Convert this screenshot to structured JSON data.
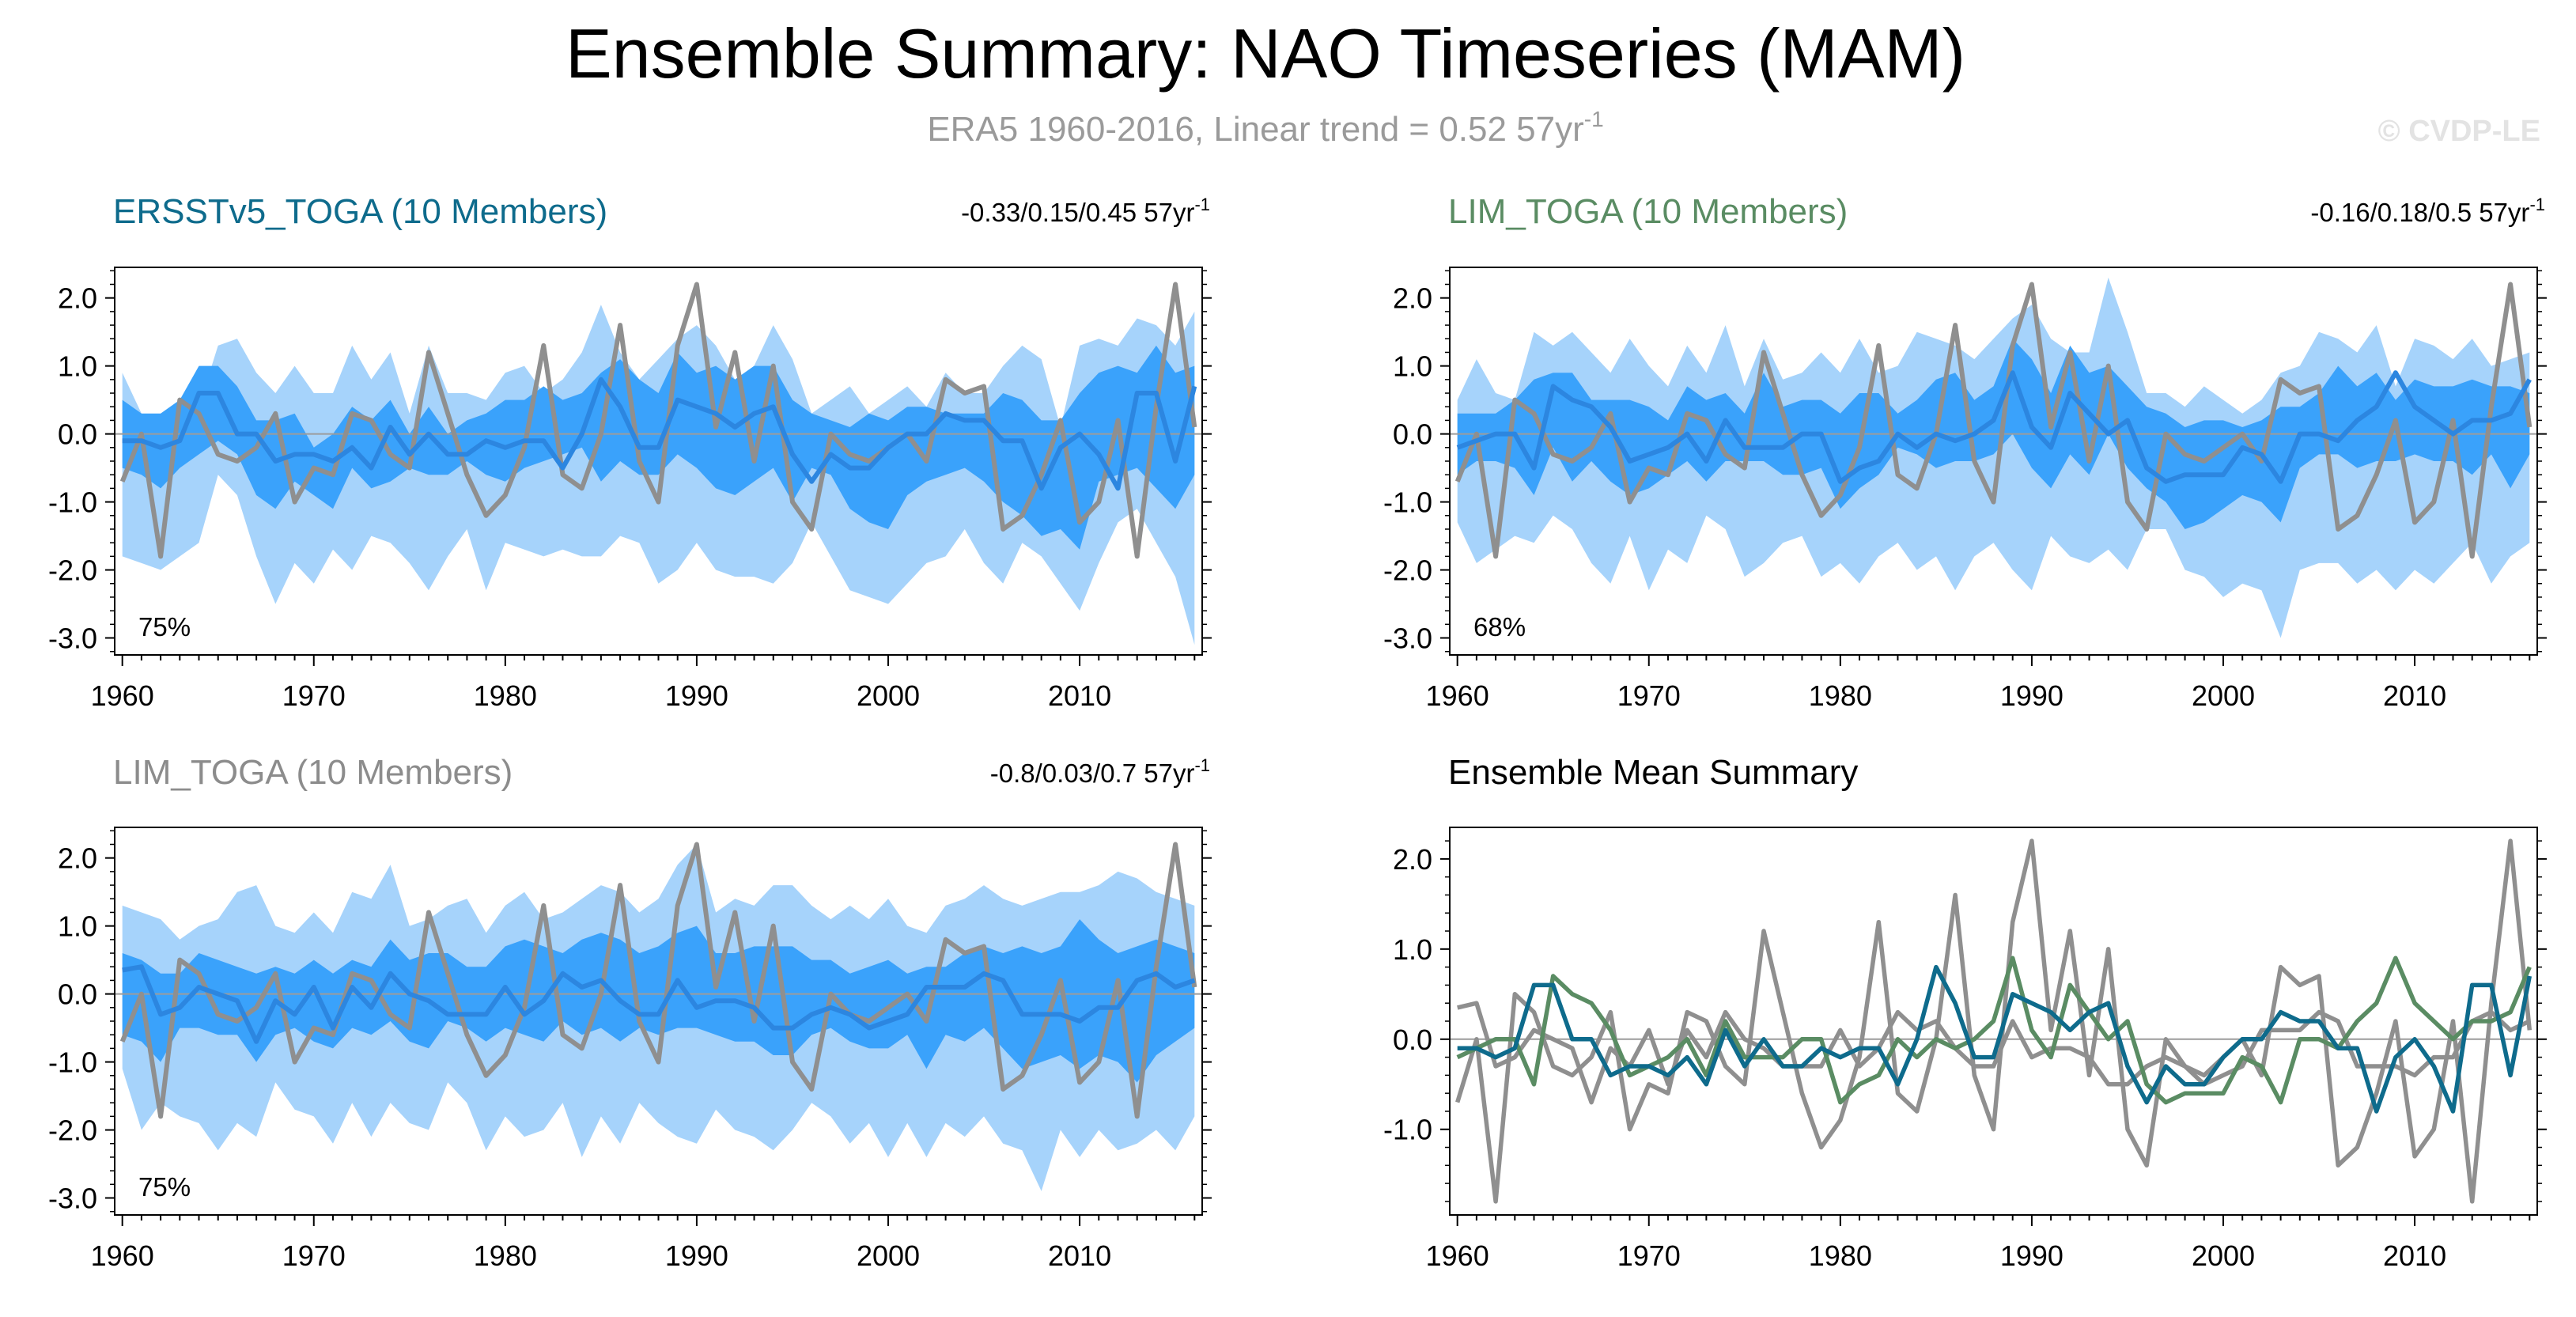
{
  "figure": {
    "title": "Ensemble Summary: NAO Timeseries (MAM)",
    "subtitle_main": "ERA5 1960-2016, Linear trend = 0.52 57yr",
    "subtitle_sup": "-1",
    "watermark": "© CVDP-LE",
    "colors": {
      "obs": "#8f8f8f",
      "band_outer": "#a6d3fb",
      "band_inner": "#3aa2fb",
      "ens_mean": "#2c86e0",
      "ersst": "#0e6b8c",
      "lim": "#5a8c63",
      "zero_line": "#9c9c9c"
    }
  },
  "chart_data": [
    {
      "type": "area",
      "panel": "ERSSTv5",
      "title": "ERSSTv5_TOGA (10 Members)",
      "title_color": "#0e6b8c",
      "trend_text": "-0.33/0.15/0.45 57yr",
      "trend_sup": "-1",
      "percent": "75%",
      "xlim": [
        1959.6,
        2016.4
      ],
      "ylim": [
        -3.25,
        2.45
      ],
      "xticks": [
        1960,
        1970,
        1980,
        1990,
        2000,
        2010
      ],
      "yticks": [
        2.0,
        1.0,
        0.0,
        -1.0,
        -2.0,
        -3.0
      ],
      "ytick_labels": [
        "2.0",
        "1.0",
        "0.0",
        "-1.0",
        "-2.0",
        "-3.0"
      ],
      "x_start": 1960,
      "obs": [
        -0.7,
        0.0,
        -1.8,
        0.5,
        0.3,
        -0.3,
        -0.4,
        -0.2,
        0.3,
        -1.0,
        -0.5,
        -0.6,
        0.3,
        0.2,
        -0.3,
        -0.5,
        1.2,
        0.3,
        -0.6,
        -1.2,
        -0.9,
        -0.2,
        1.3,
        -0.6,
        -0.8,
        0.0,
        1.6,
        -0.4,
        -1.0,
        1.3,
        2.2,
        0.1,
        1.2,
        -0.4,
        1.0,
        -1.0,
        -1.4,
        0.0,
        -0.3,
        -0.4,
        -0.2,
        0.0,
        -0.4,
        0.8,
        0.6,
        0.7,
        -1.4,
        -1.2,
        -0.6,
        0.2,
        -1.3,
        -1.0,
        0.2,
        -1.8,
        0.4,
        2.2,
        0.1
      ],
      "outer_hi": [
        0.9,
        0.3,
        0.0,
        0.5,
        0.4,
        1.3,
        1.4,
        0.9,
        0.6,
        1.0,
        0.6,
        0.6,
        1.3,
        0.8,
        1.2,
        0.3,
        1.3,
        0.6,
        0.6,
        0.5,
        0.9,
        1.0,
        0.6,
        0.8,
        1.2,
        1.9,
        1.2,
        0.8,
        1.1,
        1.4,
        1.6,
        1.3,
        0.8,
        1.0,
        1.6,
        1.1,
        0.3,
        0.5,
        0.7,
        0.3,
        0.5,
        0.7,
        0.4,
        0.9,
        0.6,
        0.6,
        1.0,
        1.3,
        1.1,
        0.1,
        1.3,
        1.4,
        1.3,
        1.7,
        1.6,
        1.3,
        1.8
      ],
      "outer_lo": [
        -1.8,
        -1.9,
        -2.0,
        -1.8,
        -1.6,
        -0.6,
        -0.9,
        -1.8,
        -2.5,
        -1.9,
        -2.2,
        -1.7,
        -2.0,
        -1.5,
        -1.6,
        -1.9,
        -2.3,
        -1.8,
        -1.4,
        -2.3,
        -1.6,
        -1.7,
        -1.8,
        -1.7,
        -1.8,
        -1.8,
        -1.5,
        -1.6,
        -2.2,
        -2.0,
        -1.6,
        -2.0,
        -2.1,
        -2.1,
        -2.2,
        -1.9,
        -1.3,
        -1.8,
        -2.3,
        -2.4,
        -2.5,
        -2.2,
        -1.9,
        -1.8,
        -1.4,
        -1.9,
        -2.2,
        -1.6,
        -1.8,
        -2.2,
        -2.6,
        -1.9,
        -1.3,
        -1.1,
        -1.6,
        -2.1,
        -3.1
      ],
      "inner_hi": [
        0.5,
        0.3,
        0.3,
        0.5,
        1.0,
        1.0,
        0.7,
        0.2,
        0.2,
        0.3,
        -0.2,
        0.0,
        0.4,
        0.2,
        0.5,
        0.0,
        0.4,
        0.0,
        0.2,
        0.3,
        0.5,
        0.5,
        0.7,
        0.5,
        0.6,
        0.9,
        1.1,
        0.8,
        0.6,
        1.2,
        0.9,
        1.0,
        0.8,
        1.0,
        1.0,
        0.5,
        0.3,
        0.2,
        0.1,
        0.3,
        0.2,
        0.4,
        0.4,
        0.3,
        0.3,
        0.3,
        0.6,
        0.5,
        0.2,
        0.2,
        0.6,
        0.9,
        1.0,
        0.9,
        1.3,
        0.9,
        1.0
      ],
      "inner_lo": [
        -0.5,
        -0.6,
        -0.8,
        -0.5,
        -0.3,
        -0.1,
        -0.3,
        -0.9,
        -1.1,
        -0.7,
        -0.9,
        -1.1,
        -0.5,
        -0.8,
        -0.7,
        -0.5,
        -0.6,
        -0.6,
        -0.4,
        -0.6,
        -0.7,
        -0.5,
        -0.4,
        -0.3,
        -0.2,
        -0.7,
        -0.4,
        -0.6,
        -0.6,
        -0.3,
        -0.5,
        -0.8,
        -0.9,
        -0.7,
        -0.5,
        -1.0,
        -0.5,
        -0.6,
        -1.1,
        -1.3,
        -1.4,
        -0.9,
        -0.7,
        -0.6,
        -0.5,
        -0.7,
        -1.0,
        -1.2,
        -1.5,
        -1.4,
        -1.7,
        -0.7,
        -0.6,
        -0.5,
        -0.8,
        -1.1,
        -0.6
      ],
      "mean": [
        -0.1,
        -0.1,
        -0.2,
        -0.1,
        0.6,
        0.6,
        0.0,
        0.0,
        -0.4,
        -0.3,
        -0.3,
        -0.4,
        -0.2,
        -0.5,
        0.1,
        -0.3,
        0.0,
        -0.3,
        -0.3,
        -0.1,
        -0.2,
        -0.1,
        -0.1,
        -0.5,
        0.0,
        0.8,
        0.4,
        -0.2,
        -0.2,
        0.5,
        0.4,
        0.3,
        0.1,
        0.3,
        0.4,
        -0.3,
        -0.7,
        -0.3,
        -0.5,
        -0.5,
        -0.2,
        0.0,
        0.0,
        0.3,
        0.2,
        0.2,
        -0.1,
        -0.1,
        -0.8,
        -0.2,
        0.0,
        -0.3,
        -0.8,
        0.6,
        0.6,
        -0.4,
        0.7
      ]
    },
    {
      "type": "area",
      "panel": "LIM_TOGA_1",
      "title": "LIM_TOGA (10 Members)",
      "title_color": "#5a8c63",
      "trend_text": "-0.16/0.18/0.5 57yr",
      "trend_sup": "-1",
      "percent": "68%",
      "xlim": [
        1959.6,
        2016.4
      ],
      "ylim": [
        -3.25,
        2.45
      ],
      "xticks": [
        1960,
        1970,
        1980,
        1990,
        2000,
        2010
      ],
      "yticks": [
        2.0,
        1.0,
        0.0,
        -1.0,
        -2.0,
        -3.0
      ],
      "ytick_labels": [
        "2.0",
        "1.0",
        "0.0",
        "-1.0",
        "-2.0",
        "-3.0"
      ],
      "x_start": 1960,
      "obs": [
        -0.7,
        0.0,
        -1.8,
        0.5,
        0.3,
        -0.3,
        -0.4,
        -0.2,
        0.3,
        -1.0,
        -0.5,
        -0.6,
        0.3,
        0.2,
        -0.3,
        -0.5,
        1.2,
        0.3,
        -0.6,
        -1.2,
        -0.9,
        -0.2,
        1.3,
        -0.6,
        -0.8,
        0.0,
        1.6,
        -0.4,
        -1.0,
        1.3,
        2.2,
        0.1,
        1.2,
        -0.4,
        1.0,
        -1.0,
        -1.4,
        0.0,
        -0.3,
        -0.4,
        -0.2,
        0.0,
        -0.4,
        0.8,
        0.6,
        0.7,
        -1.4,
        -1.2,
        -0.6,
        0.2,
        -1.3,
        -1.0,
        0.2,
        -1.8,
        0.4,
        2.2,
        0.1
      ],
      "outer_hi": [
        0.5,
        1.1,
        0.6,
        0.5,
        1.5,
        1.3,
        1.5,
        1.2,
        0.9,
        1.4,
        1.0,
        0.7,
        1.3,
        0.9,
        1.6,
        0.7,
        1.4,
        0.8,
        0.9,
        1.2,
        0.9,
        1.4,
        0.9,
        1.0,
        1.5,
        1.4,
        1.3,
        1.1,
        1.4,
        1.7,
        1.9,
        1.4,
        1.2,
        1.2,
        2.3,
        1.5,
        0.6,
        0.6,
        0.4,
        0.7,
        0.5,
        0.3,
        0.5,
        0.9,
        1.0,
        1.5,
        1.4,
        1.2,
        1.6,
        0.7,
        1.4,
        1.3,
        1.1,
        1.4,
        1.0,
        1.1,
        1.2
      ],
      "outer_lo": [
        -1.3,
        -1.9,
        -1.7,
        -1.5,
        -1.6,
        -1.2,
        -1.4,
        -1.9,
        -2.2,
        -1.5,
        -2.3,
        -1.7,
        -1.9,
        -1.2,
        -1.4,
        -2.1,
        -1.9,
        -1.6,
        -1.5,
        -2.1,
        -1.9,
        -2.2,
        -1.8,
        -1.6,
        -2.0,
        -1.8,
        -2.3,
        -1.8,
        -1.6,
        -2.0,
        -2.3,
        -1.5,
        -1.8,
        -1.9,
        -1.7,
        -2.0,
        -1.4,
        -1.4,
        -2.0,
        -2.1,
        -2.4,
        -2.2,
        -2.3,
        -3.0,
        -2.0,
        -1.9,
        -1.9,
        -2.2,
        -2.0,
        -2.3,
        -2.0,
        -2.2,
        -1.9,
        -1.6,
        -2.2,
        -1.8,
        -1.6
      ],
      "inner_hi": [
        0.3,
        0.3,
        0.3,
        0.5,
        0.8,
        0.9,
        0.9,
        0.5,
        0.5,
        0.5,
        0.4,
        0.2,
        0.7,
        0.5,
        0.6,
        0.3,
        0.9,
        0.4,
        0.5,
        0.5,
        0.3,
        0.6,
        0.6,
        0.3,
        0.5,
        0.8,
        0.9,
        0.5,
        0.7,
        1.4,
        1.1,
        0.6,
        1.3,
        0.9,
        1.0,
        0.7,
        0.4,
        0.3,
        0.1,
        0.2,
        0.2,
        0.1,
        0.2,
        0.4,
        0.4,
        0.6,
        1.0,
        0.7,
        0.9,
        0.5,
        0.8,
        0.7,
        0.7,
        0.8,
        0.7,
        0.7,
        0.6
      ],
      "inner_lo": [
        -0.6,
        -0.4,
        -0.4,
        -0.5,
        -0.9,
        -0.2,
        -0.7,
        -0.4,
        -0.7,
        -0.9,
        -0.8,
        -0.6,
        -0.4,
        -0.7,
        -0.4,
        -0.4,
        -0.4,
        -0.6,
        -0.6,
        -0.5,
        -1.1,
        -0.8,
        -0.6,
        -0.2,
        -0.3,
        -0.5,
        -0.4,
        -0.4,
        -0.3,
        0.0,
        -0.5,
        -0.8,
        -0.3,
        -0.6,
        0.0,
        -0.5,
        -0.8,
        -1.0,
        -1.4,
        -1.3,
        -1.1,
        -0.9,
        -1.0,
        -1.3,
        -0.5,
        -0.3,
        -0.3,
        -0.5,
        -0.4,
        -0.4,
        -0.3,
        -0.4,
        -0.4,
        -0.6,
        -0.3,
        -0.8,
        -0.3
      ],
      "mean": [
        -0.2,
        -0.1,
        0.0,
        0.0,
        -0.5,
        0.7,
        0.5,
        0.4,
        0.1,
        -0.4,
        -0.3,
        -0.2,
        0.0,
        -0.4,
        0.2,
        -0.2,
        -0.2,
        -0.2,
        0.0,
        0.0,
        -0.7,
        -0.5,
        -0.4,
        0.0,
        -0.2,
        0.0,
        -0.1,
        0.0,
        0.2,
        0.9,
        0.1,
        -0.2,
        0.6,
        0.3,
        0.0,
        0.2,
        -0.5,
        -0.7,
        -0.6,
        -0.6,
        -0.6,
        -0.2,
        -0.3,
        -0.7,
        0.0,
        0.0,
        -0.1,
        0.2,
        0.4,
        0.9,
        0.4,
        0.2,
        0.0,
        0.2,
        0.2,
        0.3,
        0.8
      ]
    },
    {
      "type": "area",
      "panel": "LIM_TOGA_2",
      "title": "LIM_TOGA (10 Members)",
      "title_color": "#8c8c8c",
      "trend_text": "-0.8/0.03/0.7 57yr",
      "trend_sup": "-1",
      "percent": "75%",
      "xlim": [
        1959.6,
        2016.4
      ],
      "ylim": [
        -3.25,
        2.45
      ],
      "xticks": [
        1960,
        1970,
        1980,
        1990,
        2000,
        2010
      ],
      "yticks": [
        2.0,
        1.0,
        0.0,
        -1.0,
        -2.0,
        -3.0
      ],
      "ytick_labels": [
        "2.0",
        "1.0",
        "0.0",
        "-1.0",
        "-2.0",
        "-3.0"
      ],
      "x_start": 1960,
      "obs": [
        -0.7,
        0.0,
        -1.8,
        0.5,
        0.3,
        -0.3,
        -0.4,
        -0.2,
        0.3,
        -1.0,
        -0.5,
        -0.6,
        0.3,
        0.2,
        -0.3,
        -0.5,
        1.2,
        0.3,
        -0.6,
        -1.2,
        -0.9,
        -0.2,
        1.3,
        -0.6,
        -0.8,
        0.0,
        1.6,
        -0.4,
        -1.0,
        1.3,
        2.2,
        0.1,
        1.2,
        -0.4,
        1.0,
        -1.0,
        -1.4,
        0.0,
        -0.3,
        -0.4,
        -0.2,
        0.0,
        -0.4,
        0.8,
        0.6,
        0.7,
        -1.4,
        -1.2,
        -0.6,
        0.2,
        -1.3,
        -1.0,
        0.2,
        -1.8,
        0.4,
        2.2,
        0.1
      ],
      "outer_hi": [
        1.3,
        1.2,
        1.1,
        0.8,
        1.0,
        1.1,
        1.5,
        1.6,
        1.0,
        0.9,
        1.2,
        0.9,
        1.5,
        1.4,
        1.9,
        1.0,
        1.1,
        1.3,
        1.4,
        0.9,
        1.3,
        1.5,
        1.1,
        1.2,
        1.4,
        1.6,
        1.5,
        1.2,
        1.4,
        1.9,
        2.2,
        1.2,
        1.4,
        1.3,
        1.6,
        1.6,
        1.3,
        1.1,
        1.3,
        1.1,
        1.4,
        1.0,
        0.9,
        1.3,
        1.4,
        1.6,
        1.4,
        1.3,
        1.4,
        1.5,
        1.5,
        1.6,
        1.8,
        1.7,
        1.5,
        1.4,
        1.3
      ],
      "outer_lo": [
        -1.1,
        -2.0,
        -1.6,
        -1.8,
        -1.9,
        -2.3,
        -1.9,
        -2.1,
        -1.3,
        -1.7,
        -1.8,
        -2.2,
        -1.6,
        -2.1,
        -1.6,
        -1.9,
        -2.0,
        -1.3,
        -1.6,
        -2.3,
        -1.8,
        -2.1,
        -2.0,
        -1.6,
        -2.4,
        -1.8,
        -2.2,
        -1.6,
        -1.9,
        -2.1,
        -2.2,
        -1.7,
        -2.0,
        -2.1,
        -2.3,
        -2.0,
        -1.6,
        -1.8,
        -2.2,
        -1.9,
        -2.4,
        -1.9,
        -2.4,
        -1.9,
        -2.1,
        -1.8,
        -2.2,
        -2.3,
        -2.9,
        -2.0,
        -2.4,
        -2.0,
        -2.3,
        -2.2,
        -2.0,
        -2.3,
        -1.8
      ],
      "inner_hi": [
        0.6,
        0.5,
        0.3,
        0.3,
        0.6,
        0.5,
        0.4,
        0.3,
        0.4,
        0.3,
        0.5,
        0.3,
        0.5,
        0.4,
        0.8,
        0.5,
        0.6,
        0.6,
        0.4,
        0.4,
        0.7,
        0.8,
        0.7,
        0.6,
        0.8,
        0.9,
        0.8,
        0.6,
        0.7,
        0.9,
        1.0,
        0.6,
        0.6,
        0.7,
        0.7,
        0.7,
        0.5,
        0.5,
        0.3,
        0.4,
        0.5,
        0.3,
        0.4,
        0.4,
        0.6,
        0.7,
        0.6,
        0.7,
        0.6,
        0.7,
        1.1,
        0.8,
        0.6,
        0.7,
        0.8,
        0.7,
        0.6
      ],
      "inner_lo": [
        -0.6,
        -0.7,
        -1.0,
        -0.5,
        -0.5,
        -0.6,
        -0.6,
        -1.0,
        -0.6,
        -0.5,
        -0.7,
        -0.8,
        -0.5,
        -0.6,
        -0.4,
        -0.7,
        -0.8,
        -0.4,
        -0.5,
        -0.7,
        -0.5,
        -0.6,
        -0.7,
        -0.4,
        -0.6,
        -0.5,
        -0.7,
        -0.5,
        -0.6,
        -0.5,
        -0.5,
        -0.6,
        -0.7,
        -0.7,
        -0.9,
        -0.9,
        -0.6,
        -0.5,
        -0.7,
        -0.8,
        -0.8,
        -0.6,
        -1.1,
        -0.6,
        -0.7,
        -0.5,
        -0.8,
        -1.1,
        -1.0,
        -0.9,
        -1.1,
        -0.9,
        -1.0,
        -1.3,
        -0.9,
        -0.7,
        -0.5
      ],
      "mean": [
        0.35,
        0.4,
        -0.3,
        -0.2,
        0.1,
        0.0,
        -0.1,
        -0.7,
        -0.1,
        -0.3,
        0.1,
        -0.5,
        0.1,
        -0.2,
        0.3,
        0.0,
        -0.1,
        -0.3,
        -0.3,
        -0.3,
        0.1,
        -0.3,
        -0.1,
        0.3,
        0.1,
        0.2,
        -0.1,
        -0.3,
        -0.3,
        0.2,
        -0.2,
        -0.1,
        -0.1,
        -0.2,
        -0.5,
        -0.5,
        -0.3,
        -0.2,
        -0.3,
        -0.5,
        -0.4,
        -0.3,
        0.1,
        0.1,
        0.1,
        0.3,
        0.2,
        -0.3,
        -0.3,
        -0.3,
        -0.4,
        -0.2,
        -0.2,
        0.2,
        0.3,
        0.1,
        0.2
      ]
    },
    {
      "type": "line",
      "panel": "ensemble_mean_summary",
      "title": "Ensemble Mean Summary",
      "title_color": "#000000",
      "xlim": [
        1959.6,
        2016.4
      ],
      "ylim": [
        -1.95,
        2.35
      ],
      "xticks": [
        1960,
        1970,
        1980,
        1990,
        2000,
        2010
      ],
      "yticks": [
        2.0,
        1.0,
        0.0,
        -1.0
      ],
      "ytick_labels": [
        "2.0",
        "1.0",
        "0.0",
        "-1.0"
      ],
      "x_start": 1960
    }
  ]
}
